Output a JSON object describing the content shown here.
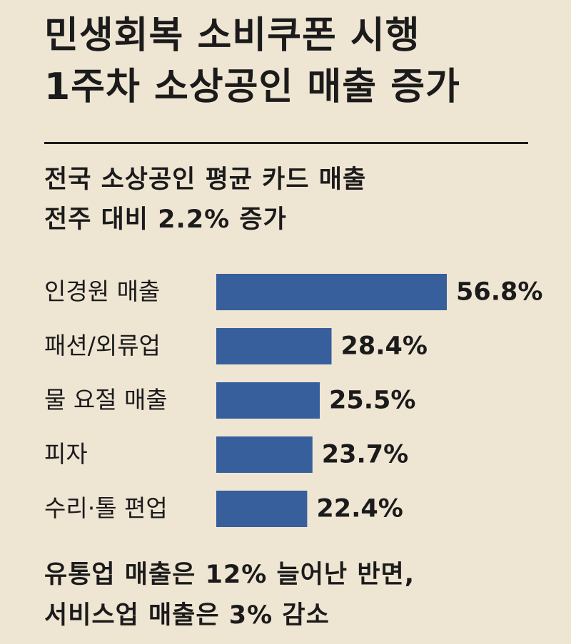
{
  "header": {
    "title_line1": "민생회복 소비쿠폰 시행",
    "title_line2": "1주차 소상공인 매출 증가"
  },
  "summary": {
    "line1": "전국 소상공인 평균 카드 매출",
    "line2": "전주 대비 2.2% 증가"
  },
  "footer": {
    "line1": "유통업 매출은 12% 늘어난 반면,",
    "line2": "서비스업 매출은 3% 감소"
  },
  "colors": {
    "background": "#efe5d3",
    "bar": "#365f9c",
    "text": "#1b1b1b"
  },
  "chart_data": {
    "type": "bar",
    "orientation": "horizontal",
    "categories": [
      "인경원 매출",
      "패션/외류업",
      "물 요절 매출",
      "피자",
      "수리·톨 편업"
    ],
    "values": [
      56.8,
      28.4,
      25.5,
      23.7,
      22.4
    ],
    "value_labels": [
      "56.8%",
      "28.4%",
      "25.5%",
      "23.7%",
      "22.4%"
    ],
    "grid": false,
    "axes_visible": false
  }
}
